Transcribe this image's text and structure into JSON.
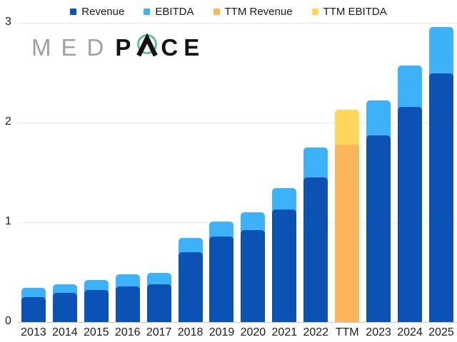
{
  "logo": {
    "med": "MED",
    "p": "P",
    "a": "A",
    "ce": "CE",
    "med_color": "#9DA1A4",
    "pace_color": "#131313",
    "ring_color": "#56C18F"
  },
  "legend": {
    "items": [
      {
        "label": "Revenue",
        "color": "#0B52B4"
      },
      {
        "label": "EBITDA",
        "color": "#3EB1FB"
      },
      {
        "label": "TTM Revenue",
        "color": "#FBB55B"
      },
      {
        "label": "TTM EBITDA",
        "color": "#FED65C"
      }
    ]
  },
  "chart_data": {
    "type": "bar",
    "stacked": true,
    "title": "",
    "xlabel": "",
    "ylabel": "",
    "ylim": [
      0,
      3
    ],
    "yticks": [
      "0",
      "1",
      "2",
      "3"
    ],
    "grid": true,
    "legend_position": "top",
    "categories": [
      "2013",
      "2014",
      "2015",
      "2016",
      "2017",
      "2018",
      "2019",
      "2020",
      "2021",
      "2022",
      "TTM",
      "2023",
      "2024",
      "2025"
    ],
    "series": [
      {
        "name": "Revenue",
        "color": "#0B52B4",
        "values": [
          0.25,
          0.29,
          0.32,
          0.36,
          0.38,
          0.7,
          0.86,
          0.92,
          1.13,
          1.45,
          null,
          1.87,
          2.16,
          2.49
        ]
      },
      {
        "name": "EBITDA",
        "color": "#3EB1FB",
        "values": [
          0.09,
          0.09,
          0.1,
          0.12,
          0.11,
          0.14,
          0.15,
          0.18,
          0.21,
          0.3,
          null,
          0.35,
          0.41,
          0.47
        ]
      },
      {
        "name": "TTM Revenue",
        "color": "#FBB55B",
        "values": [
          null,
          null,
          null,
          null,
          null,
          null,
          null,
          null,
          null,
          null,
          1.78,
          null,
          null,
          null
        ]
      },
      {
        "name": "TTM EBITDA",
        "color": "#FED65C",
        "values": [
          null,
          null,
          null,
          null,
          null,
          null,
          null,
          null,
          null,
          null,
          0.35,
          null,
          null,
          null
        ]
      }
    ]
  }
}
